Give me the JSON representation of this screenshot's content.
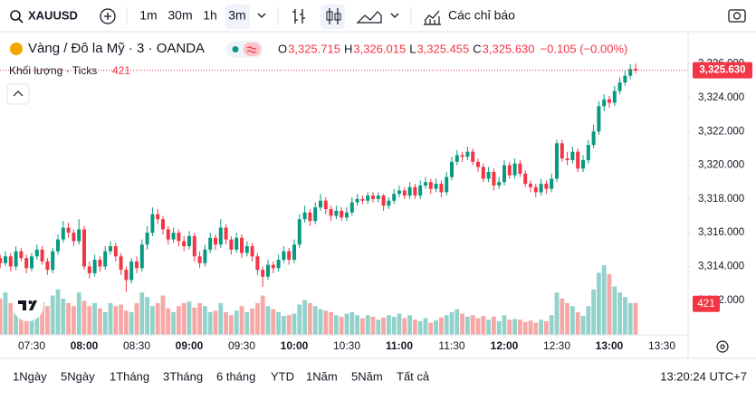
{
  "toolbar": {
    "symbol": "XAUUSD",
    "intervals": [
      "1m",
      "30m",
      "1h",
      "3m"
    ],
    "indicators": "Các chỉ báo"
  },
  "legend": {
    "title": "Vàng / Đô la Mỹ · 3 · OANDA",
    "ohlc": [
      {
        "key": "O",
        "value": "3,325.715"
      },
      {
        "key": "H",
        "value": "3,326.015"
      },
      {
        "key": "L",
        "value": "3,325.455"
      },
      {
        "key": "C",
        "value": "3,325.630"
      }
    ],
    "change": "−0.105 (−0.00%)",
    "volume_title": "Khối lượng · Ticks"
  },
  "bottom_bar": {
    "ranges": [
      "1Ngày",
      "5Ngày",
      "1Tháng",
      "3Tháng",
      "6 tháng",
      "YTD",
      "1Năm",
      "5Năm",
      "Tất cả"
    ],
    "clock": "13:20:24 UTC+7"
  },
  "chart_data": {
    "type": "candlestick",
    "up_color": "#089981",
    "down_color": "#f23645",
    "volume_up_color": "#93d2cb",
    "volume_down_color": "#f7a8a6",
    "last_price_label": "3,325.630",
    "xlim": [
      431.9,
      825
    ],
    "ylim": [
      3309.95,
      3326.84
    ],
    "volume_lim": [
      0,
      1100
    ],
    "grid": false,
    "xticks": [
      {
        "value": 450,
        "label": "07:30"
      },
      {
        "value": 480,
        "label": "08:00"
      },
      {
        "value": 510,
        "label": "08:30"
      },
      {
        "value": 540,
        "label": "09:00"
      },
      {
        "value": 570,
        "label": "09:30"
      },
      {
        "value": 600,
        "label": "10:00"
      },
      {
        "value": 630,
        "label": "10:30"
      },
      {
        "value": 660,
        "label": "11:00"
      },
      {
        "value": 690,
        "label": "11:30"
      },
      {
        "value": 720,
        "label": "12:00"
      },
      {
        "value": 750,
        "label": "12:30"
      },
      {
        "value": 780,
        "label": "13:00"
      },
      {
        "value": 810,
        "label": "13:30"
      }
    ],
    "yticks": [
      {
        "value": 3312,
        "label": "3,312.000"
      },
      {
        "value": 3314,
        "label": "3,314.000"
      },
      {
        "value": 3316,
        "label": "3,316.000"
      },
      {
        "value": 3318,
        "label": "3,318.000"
      },
      {
        "value": 3320,
        "label": "3,320.000"
      },
      {
        "value": 3322,
        "label": "3,322.000"
      },
      {
        "value": 3324,
        "label": "3,324.000"
      },
      {
        "value": 3326,
        "label": "3,326.000"
      }
    ],
    "x": [
      432,
      435,
      438,
      441,
      444,
      447,
      450,
      453,
      456,
      459,
      462,
      465,
      468,
      471,
      474,
      477,
      480,
      483,
      486,
      489,
      492,
      495,
      498,
      501,
      504,
      507,
      510,
      513,
      516,
      519,
      522,
      525,
      528,
      531,
      534,
      537,
      540,
      543,
      546,
      549,
      552,
      555,
      558,
      561,
      564,
      567,
      570,
      573,
      576,
      579,
      582,
      585,
      588,
      591,
      594,
      597,
      600,
      603,
      606,
      609,
      612,
      615,
      618,
      621,
      624,
      627,
      630,
      633,
      636,
      639,
      642,
      645,
      648,
      651,
      654,
      657,
      660,
      663,
      666,
      669,
      672,
      675,
      678,
      681,
      684,
      687,
      690,
      693,
      696,
      699,
      702,
      705,
      708,
      711,
      714,
      717,
      720,
      723,
      726,
      729,
      732,
      735,
      738,
      741,
      744,
      747,
      750,
      753,
      756,
      759,
      762,
      765,
      768,
      771,
      774,
      777,
      780,
      783,
      786,
      789,
      792,
      795
    ],
    "open": [
      3314.5,
      3314.2,
      3314.6,
      3314.0,
      3314.9,
      3314.5,
      3313.9,
      3314.6,
      3315.0,
      3314.3,
      3313.8,
      3314.9,
      3315.6,
      3316.3,
      3316.0,
      3315.5,
      3316.2,
      3314.0,
      3313.6,
      3314.4,
      3314.0,
      3314.9,
      3315.2,
      3314.6,
      3313.8,
      3313.2,
      3314.3,
      3313.9,
      3315.3,
      3316.0,
      3317.1,
      3316.8,
      3316.2,
      3315.6,
      3316.0,
      3315.5,
      3315.2,
      3315.8,
      3314.6,
      3314.2,
      3315.0,
      3315.7,
      3315.3,
      3316.3,
      3315.6,
      3315.0,
      3315.7,
      3314.8,
      3315.2,
      3314.6,
      3313.8,
      3313.4,
      3314.1,
      3313.9,
      3314.4,
      3314.9,
      3314.4,
      3315.3,
      3316.8,
      3317.2,
      3316.7,
      3317.5,
      3317.9,
      3317.4,
      3317.0,
      3317.3,
      3316.9,
      3317.2,
      3317.8,
      3318.0,
      3317.9,
      3318.2,
      3318.0,
      3318.2,
      3317.6,
      3317.9,
      3318.3,
      3318.5,
      3318.2,
      3318.7,
      3318.2,
      3318.8,
      3319.0,
      3318.6,
      3318.9,
      3318.4,
      3319.3,
      3320.2,
      3320.6,
      3320.5,
      3320.8,
      3320.2,
      3319.9,
      3319.2,
      3319.6,
      3318.8,
      3319.0,
      3320.0,
      3319.4,
      3320.1,
      3319.5,
      3318.9,
      3318.7,
      3318.4,
      3318.9,
      3318.6,
      3319.2,
      3321.3,
      3320.4,
      3320.3,
      3320.8,
      3319.8,
      3320.3,
      3321.2,
      3322.0,
      3323.5,
      3323.9,
      3323.7,
      3324.4,
      3324.9,
      3325.3,
      3325.715
    ],
    "high": [
      3314.7,
      3314.9,
      3314.8,
      3315.2,
      3315.1,
      3314.7,
      3314.8,
      3315.3,
      3315.2,
      3314.5,
      3315.1,
      3315.9,
      3316.7,
      3316.6,
      3316.2,
      3316.8,
      3316.4,
      3314.3,
      3314.7,
      3314.6,
      3315.2,
      3315.5,
      3315.4,
      3314.8,
      3314.0,
      3314.5,
      3314.6,
      3315.6,
      3316.4,
      3317.5,
      3317.4,
      3317.0,
      3316.4,
      3316.3,
      3316.2,
      3315.8,
      3316.1,
      3316.0,
      3314.9,
      3315.3,
      3316.0,
      3315.9,
      3316.8,
      3316.5,
      3315.8,
      3316.0,
      3315.9,
      3315.5,
      3315.4,
      3314.8,
      3314.0,
      3314.4,
      3314.3,
      3314.7,
      3315.2,
      3315.1,
      3315.6,
      3317.1,
      3317.6,
      3317.4,
      3317.8,
      3318.3,
      3318.1,
      3317.6,
      3317.6,
      3317.5,
      3317.5,
      3318.1,
      3318.3,
      3318.2,
      3318.4,
      3318.4,
      3318.4,
      3318.3,
      3318.1,
      3318.6,
      3318.8,
      3318.7,
      3319.0,
      3318.9,
      3319.1,
      3319.3,
      3319.2,
      3319.2,
      3319.1,
      3319.6,
      3320.5,
      3320.9,
      3320.8,
      3321.1,
      3321.0,
      3320.4,
      3320.1,
      3319.9,
      3319.8,
      3319.3,
      3320.3,
      3320.2,
      3320.4,
      3320.3,
      3319.7,
      3319.1,
      3318.9,
      3319.2,
      3319.1,
      3319.5,
      3321.5,
      3321.5,
      3320.8,
      3321.1,
      3321.0,
      3320.6,
      3321.5,
      3322.4,
      3323.8,
      3324.2,
      3324.1,
      3324.7,
      3325.2,
      3325.6,
      3326.0,
      3326.015
    ],
    "low": [
      3313.9,
      3314.0,
      3313.7,
      3313.8,
      3314.3,
      3313.6,
      3313.7,
      3314.4,
      3314.1,
      3313.5,
      3313.6,
      3314.7,
      3315.4,
      3315.7,
      3315.2,
      3315.3,
      3313.8,
      3313.3,
      3313.4,
      3313.7,
      3313.8,
      3314.7,
      3314.3,
      3313.5,
      3312.5,
      3313.0,
      3313.6,
      3313.7,
      3315.0,
      3315.8,
      3316.5,
      3315.9,
      3315.3,
      3315.4,
      3315.2,
      3314.9,
      3315.0,
      3314.3,
      3313.9,
      3314.0,
      3314.8,
      3315.0,
      3315.1,
      3315.3,
      3314.7,
      3314.8,
      3314.5,
      3314.6,
      3314.3,
      3313.5,
      3312.8,
      3313.2,
      3313.6,
      3313.7,
      3314.2,
      3314.1,
      3314.2,
      3315.1,
      3316.6,
      3316.4,
      3316.5,
      3317.3,
      3317.1,
      3316.7,
      3316.8,
      3316.7,
      3316.7,
      3317.0,
      3317.6,
      3317.7,
      3317.7,
      3317.8,
      3317.8,
      3317.3,
      3317.4,
      3317.7,
      3318.1,
      3318.0,
      3318.0,
      3318.0,
      3318.0,
      3318.6,
      3318.3,
      3318.4,
      3318.1,
      3318.2,
      3319.1,
      3320.0,
      3320.2,
      3320.3,
      3320.0,
      3319.6,
      3319.0,
      3319.0,
      3318.5,
      3318.6,
      3318.8,
      3319.2,
      3319.2,
      3319.3,
      3318.7,
      3318.4,
      3318.1,
      3318.2,
      3318.3,
      3318.4,
      3319.0,
      3320.2,
      3320.0,
      3320.1,
      3319.6,
      3319.6,
      3320.1,
      3321.0,
      3321.8,
      3323.2,
      3323.4,
      3323.5,
      3324.2,
      3324.7,
      3325.1,
      3325.455
    ],
    "close": [
      3314.2,
      3314.6,
      3314.0,
      3314.9,
      3314.5,
      3313.9,
      3314.6,
      3315.0,
      3314.3,
      3313.8,
      3314.9,
      3315.6,
      3316.3,
      3316.0,
      3315.5,
      3316.2,
      3314.0,
      3313.6,
      3314.4,
      3314.0,
      3314.9,
      3315.2,
      3314.6,
      3313.8,
      3313.2,
      3314.3,
      3313.9,
      3315.3,
      3316.0,
      3317.1,
      3316.8,
      3316.2,
      3315.6,
      3316.0,
      3315.5,
      3315.2,
      3315.8,
      3314.6,
      3314.2,
      3315.0,
      3315.7,
      3315.3,
      3316.3,
      3315.6,
      3315.0,
      3315.7,
      3314.8,
      3315.2,
      3314.6,
      3313.8,
      3313.4,
      3314.1,
      3313.9,
      3314.4,
      3314.9,
      3314.4,
      3315.3,
      3316.8,
      3317.2,
      3316.7,
      3317.5,
      3317.9,
      3317.4,
      3317.0,
      3317.3,
      3316.9,
      3317.2,
      3317.8,
      3318.0,
      3317.9,
      3318.2,
      3318.0,
      3318.2,
      3317.6,
      3317.9,
      3318.3,
      3318.5,
      3318.2,
      3318.7,
      3318.2,
      3318.8,
      3319.0,
      3318.6,
      3318.9,
      3318.4,
      3319.3,
      3320.2,
      3320.6,
      3320.5,
      3320.8,
      3320.2,
      3319.9,
      3319.2,
      3319.6,
      3318.8,
      3319.0,
      3320.0,
      3319.4,
      3320.1,
      3319.5,
      3318.9,
      3318.7,
      3318.4,
      3318.9,
      3318.6,
      3319.2,
      3321.3,
      3320.4,
      3320.3,
      3320.8,
      3319.8,
      3320.3,
      3321.2,
      3322.0,
      3323.5,
      3323.9,
      3323.7,
      3324.4,
      3324.9,
      3325.3,
      3325.7,
      3325.63
    ],
    "volume": [
      480,
      560,
      420,
      380,
      450,
      520,
      400,
      350,
      430,
      380,
      520,
      600,
      480,
      420,
      380,
      560,
      450,
      380,
      420,
      350,
      300,
      420,
      380,
      400,
      320,
      300,
      420,
      560,
      500,
      380,
      420,
      520,
      350,
      300,
      380,
      420,
      440,
      360,
      420,
      380,
      300,
      320,
      420,
      300,
      260,
      320,
      380,
      300,
      350,
      420,
      520,
      380,
      340,
      300,
      250,
      260,
      280,
      400,
      460,
      420,
      380,
      340,
      320,
      300,
      260,
      240,
      280,
      300,
      260,
      220,
      260,
      240,
      200,
      230,
      260,
      240,
      280,
      220,
      260,
      200,
      180,
      220,
      160,
      190,
      230,
      260,
      300,
      340,
      280,
      240,
      260,
      220,
      250,
      200,
      240,
      180,
      260,
      200,
      210,
      200,
      170,
      190,
      160,
      200,
      180,
      260,
      560,
      480,
      420,
      380,
      300,
      250,
      380,
      600,
      820,
      920,
      800,
      640,
      560,
      500,
      420,
      421
    ]
  }
}
